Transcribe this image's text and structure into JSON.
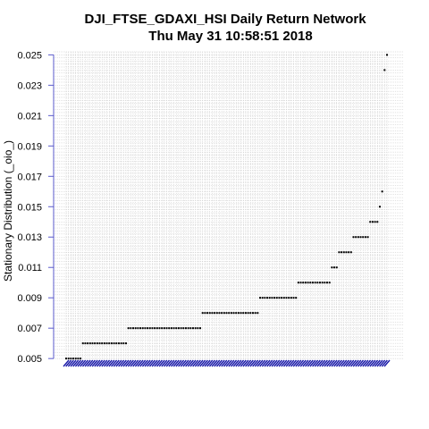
{
  "chart_data": {
    "type": "scatter",
    "title": "DJI_FTSE_GDAXI_HSI  Daily Return Network",
    "subtitle": "Thu May 31 10:58:51 2018",
    "xlabel": "",
    "ylabel": "Stationary Distribution (_oio_)",
    "ylim": [
      0.00495,
      0.0252
    ],
    "yticks": [
      "0.005",
      "0.007",
      "0.009",
      "0.011",
      "0.013",
      "0.015",
      "0.017",
      "0.019",
      "0.021",
      "0.023",
      "0.025"
    ],
    "grid": true,
    "legend": "none",
    "x_tick_label_color": "#1a1aa8",
    "point_color": "#000000",
    "groups": [
      {
        "y": 0.005,
        "count": 7
      },
      {
        "y": 0.006,
        "count": 19
      },
      {
        "y": 0.007,
        "count": 31
      },
      {
        "y": 0.008,
        "count": 24
      },
      {
        "y": 0.009,
        "count": 16
      },
      {
        "y": 0.01,
        "count": 14
      },
      {
        "y": 0.011,
        "count": 3
      },
      {
        "y": 0.012,
        "count": 6
      },
      {
        "y": 0.013,
        "count": 7
      },
      {
        "y": 0.014,
        "count": 4
      },
      {
        "y": 0.015,
        "count": 1
      },
      {
        "y": 0.016,
        "count": 1
      },
      {
        "y": 0.024,
        "count": 1
      },
      {
        "y": 0.025,
        "count": 1
      }
    ]
  }
}
